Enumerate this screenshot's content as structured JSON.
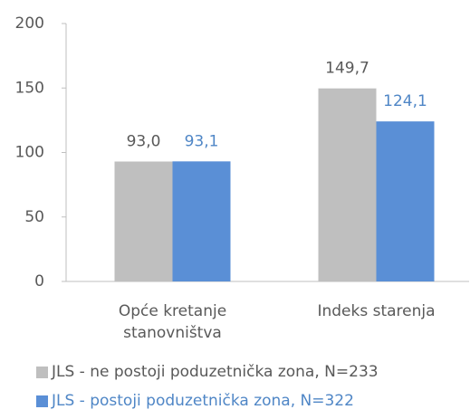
{
  "chart_data": {
    "type": "bar",
    "categories": [
      "Opće kretanje stanovništva",
      "Indeks starenja"
    ],
    "series": [
      {
        "name": "JLS - ne postoji poduzetnička zona, N=233",
        "color": "#bfbfbf",
        "values": [
          93.0,
          149.7
        ],
        "value_labels": [
          "93,0",
          "149,7"
        ],
        "label_color": "#595959"
      },
      {
        "name": "JLS - postoji poduzetnička zona, N=322",
        "color": "#5a8fd6",
        "values": [
          93.1,
          124.1
        ],
        "value_labels": [
          "93,1",
          "124,1"
        ],
        "label_color": "#4f86c6"
      }
    ],
    "ylim": [
      0,
      200
    ],
    "yticks": [
      0,
      50,
      100,
      150,
      200
    ],
    "grid": false
  }
}
